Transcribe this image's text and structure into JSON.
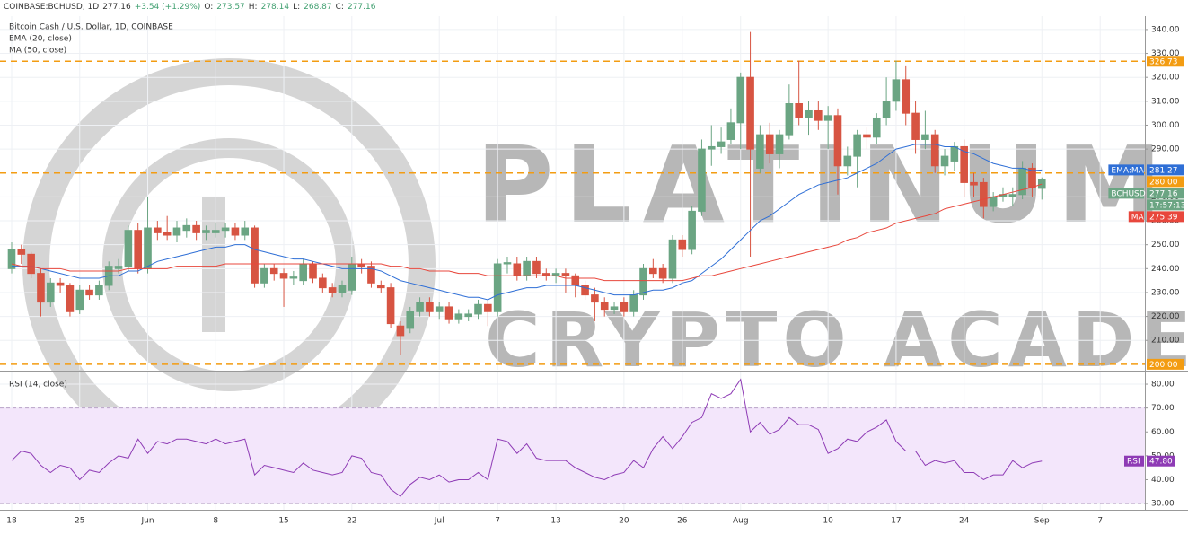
{
  "header": {
    "symbol": "COINBASE:BCHUSD, 1D",
    "last": "277.16",
    "change": "+3.54 (+1.29%)",
    "o_label": "O:",
    "o": "273.57",
    "h_label": "H:",
    "h": "278.14",
    "l_label": "L:",
    "l": "268.87",
    "c_label": "C:",
    "c": "277.16"
  },
  "watermark": {
    "line1": "PLATINUM",
    "line2": "CRYPTO ACADEMY"
  },
  "chart_data": [
    {
      "type": "candlestick",
      "title": "Bitcoin Cash / U.S. Dollar, 1D, COINBASE",
      "up_color": "#6ba583",
      "down_color": "#d75442",
      "ohlc": [
        [
          240,
          251,
          238,
          248
        ],
        [
          248,
          250,
          242,
          246
        ],
        [
          246,
          247,
          236,
          238
        ],
        [
          238,
          240,
          220,
          226
        ],
        [
          226,
          236,
          224,
          234
        ],
        [
          234,
          236,
          230,
          233
        ],
        [
          233,
          234,
          220,
          222
        ],
        [
          223,
          233,
          221,
          231
        ],
        [
          231,
          233,
          227,
          229
        ],
        [
          229,
          235,
          227,
          233
        ],
        [
          233,
          243,
          231,
          241
        ],
        [
          240,
          244,
          238,
          241
        ],
        [
          241,
          258,
          239,
          256
        ],
        [
          256,
          259,
          238,
          240
        ],
        [
          240,
          270,
          238,
          257
        ],
        [
          257,
          260,
          252,
          255
        ],
        [
          255,
          262,
          252,
          254
        ],
        [
          254,
          260,
          251,
          257
        ],
        [
          256,
          261,
          253,
          258
        ],
        [
          258,
          260,
          252,
          255
        ],
        [
          255,
          258,
          252,
          256
        ],
        [
          255,
          259,
          253,
          256
        ],
        [
          256,
          259,
          253,
          257
        ],
        [
          257,
          259,
          252,
          254
        ],
        [
          254,
          260,
          252,
          257
        ],
        [
          257,
          258,
          232,
          234
        ],
        [
          234,
          242,
          232,
          240
        ],
        [
          240,
          242,
          235,
          238
        ],
        [
          238,
          240,
          224,
          236
        ],
        [
          236,
          239,
          233,
          236.5
        ],
        [
          235,
          244,
          233,
          242
        ],
        [
          242,
          243,
          234,
          236
        ],
        [
          236,
          238,
          230,
          232
        ],
        [
          232,
          234,
          228,
          230
        ],
        [
          230,
          235,
          228,
          233
        ],
        [
          231,
          245,
          229,
          242
        ],
        [
          242,
          244,
          238,
          241
        ],
        [
          241,
          243,
          232,
          234
        ],
        [
          233,
          235,
          230,
          232
        ],
        [
          232,
          234,
          215,
          217
        ],
        [
          216,
          218,
          204,
          212
        ],
        [
          215,
          224,
          213,
          222
        ],
        [
          222,
          228,
          220,
          226
        ],
        [
          226,
          228,
          220,
          222
        ],
        [
          222,
          226,
          219,
          224
        ],
        [
          224,
          226,
          217,
          219
        ],
        [
          219,
          223,
          217,
          221
        ],
        [
          220,
          223,
          218,
          221
        ],
        [
          221,
          227,
          219,
          225
        ],
        [
          225,
          227,
          216,
          222
        ],
        [
          222,
          244,
          220,
          242
        ],
        [
          242,
          245,
          238,
          242.5
        ],
        [
          242,
          245,
          235,
          237
        ],
        [
          237,
          245,
          235,
          243
        ],
        [
          243,
          245,
          236,
          238
        ],
        [
          238,
          240,
          235,
          237
        ],
        [
          237,
          240,
          234,
          238
        ],
        [
          238,
          240,
          230,
          237
        ],
        [
          237,
          238,
          228,
          233
        ],
        [
          233,
          235,
          227,
          229
        ],
        [
          229,
          232,
          218,
          226
        ],
        [
          226,
          228,
          220,
          223
        ],
        [
          223,
          226,
          221,
          224
        ],
        [
          226,
          228,
          220,
          222
        ],
        [
          222,
          231,
          220,
          229
        ],
        [
          229,
          242,
          227,
          240
        ],
        [
          240,
          244,
          236,
          238
        ],
        [
          240,
          242,
          234,
          236
        ],
        [
          236,
          254,
          234,
          252
        ],
        [
          252,
          254,
          245,
          248
        ],
        [
          248,
          266,
          246,
          264
        ],
        [
          264,
          294,
          262,
          290
        ],
        [
          290,
          300,
          283,
          291
        ],
        [
          291,
          299,
          288,
          293
        ],
        [
          294,
          307,
          292,
          301
        ],
        [
          301,
          322,
          290,
          320
        ],
        [
          320,
          339,
          245,
          290
        ],
        [
          282,
          300,
          280,
          296
        ],
        [
          296,
          301,
          284,
          288
        ],
        [
          288,
          298,
          282,
          296
        ],
        [
          296,
          317,
          294,
          309
        ],
        [
          309,
          327,
          300,
          303
        ],
        [
          303,
          310,
          296,
          306
        ],
        [
          306,
          310,
          298,
          302
        ],
        [
          302,
          308,
          290,
          304
        ],
        [
          304,
          307,
          271,
          283
        ],
        [
          283,
          291,
          279,
          287
        ],
        [
          287,
          298,
          274,
          296
        ],
        [
          296,
          299,
          290,
          295
        ],
        [
          295,
          305,
          292,
          303
        ],
        [
          303,
          320,
          300,
          310
        ],
        [
          310,
          327,
          306,
          319
        ],
        [
          319,
          325,
          300,
          305
        ],
        [
          305,
          310,
          288,
          294
        ],
        [
          294,
          306,
          290,
          296
        ],
        [
          296,
          298,
          280,
          283
        ],
        [
          283,
          290,
          279,
          287
        ],
        [
          285,
          293,
          281,
          291
        ],
        [
          291,
          294,
          270,
          276
        ],
        [
          276,
          280,
          270,
          275
        ],
        [
          276,
          278,
          261,
          266
        ],
        [
          266,
          272,
          264,
          270
        ],
        [
          270,
          274,
          268,
          271
        ],
        [
          270,
          274,
          266,
          271
        ],
        [
          271,
          285,
          269,
          282
        ],
        [
          282,
          284,
          270,
          274
        ],
        [
          273.57,
          278.14,
          268.87,
          277.16
        ]
      ],
      "series": [
        {
          "name": "EMA (20, close)",
          "color": "#2f6fd6",
          "values": [
            241,
            241,
            241,
            240,
            239,
            238,
            237,
            236,
            236,
            236,
            237,
            237,
            239,
            239,
            241,
            243,
            244,
            245,
            246,
            247,
            248,
            249,
            249,
            250,
            250,
            248,
            247,
            246,
            245,
            244,
            244,
            243,
            242,
            241,
            240,
            240,
            240,
            240,
            239,
            237,
            235,
            234,
            233,
            232,
            231,
            230,
            229,
            228,
            228,
            227,
            229,
            230,
            231,
            232,
            232,
            233,
            233,
            233,
            233,
            232,
            231,
            230,
            229,
            229,
            229,
            230,
            231,
            231,
            232,
            234,
            235,
            238,
            241,
            244,
            248,
            252,
            256,
            260,
            262,
            265,
            268,
            271,
            273,
            275,
            276,
            277,
            278,
            280,
            282,
            284,
            287,
            290,
            291,
            292,
            292,
            292,
            291,
            291,
            289,
            288,
            286,
            284,
            283,
            282,
            282,
            281,
            281.27
          ]
        },
        {
          "name": "MA (50, close)",
          "color": "#e8473c",
          "values": [
            242,
            241,
            241,
            240,
            240,
            240,
            239,
            239,
            239,
            239,
            239,
            239,
            240,
            240,
            240,
            240,
            240,
            241,
            241,
            241,
            241,
            241,
            242,
            242,
            242,
            242,
            242,
            242,
            242,
            242,
            242,
            242,
            242,
            242,
            242,
            242,
            242,
            242,
            242,
            241,
            241,
            240,
            240,
            239,
            239,
            239,
            238,
            238,
            238,
            237,
            237,
            237,
            237,
            237,
            237,
            237,
            237,
            236,
            236,
            236,
            236,
            235,
            235,
            235,
            235,
            235,
            235,
            235,
            235,
            235,
            236,
            237,
            237,
            238,
            239,
            240,
            241,
            242,
            243,
            244,
            245,
            246,
            247,
            248,
            249,
            250,
            252,
            253,
            255,
            256,
            257,
            259,
            260,
            261,
            262,
            263,
            265,
            266,
            267,
            268,
            269,
            270,
            271,
            272,
            273,
            274,
            275.39
          ]
        }
      ],
      "xlim": [
        -1.2,
        116.6
      ],
      "xticks": [
        {
          "value": 0,
          "label": "18"
        },
        {
          "value": 7,
          "label": "25"
        },
        {
          "value": 14,
          "label": "Jun"
        },
        {
          "value": 21,
          "label": "8"
        },
        {
          "value": 28,
          "label": "15"
        },
        {
          "value": 35,
          "label": "22"
        },
        {
          "value": 44,
          "label": "Jul"
        },
        {
          "value": 50,
          "label": "7"
        },
        {
          "value": 56,
          "label": "13"
        },
        {
          "value": 63,
          "label": "20"
        },
        {
          "value": 69,
          "label": "26"
        },
        {
          "value": 75,
          "label": "Aug"
        },
        {
          "value": 84,
          "label": "10"
        },
        {
          "value": 91,
          "label": "17"
        },
        {
          "value": 98,
          "label": "24"
        },
        {
          "value": 106,
          "label": "Sep"
        },
        {
          "value": 112,
          "label": "7"
        }
      ],
      "ylim": [
        197.7,
        345.6
      ],
      "yticks": [
        {
          "value": 340,
          "label": "340.00"
        },
        {
          "value": 330,
          "label": "330.00"
        },
        {
          "value": 320,
          "label": "320.00"
        },
        {
          "value": 310,
          "label": "310.00"
        },
        {
          "value": 300,
          "label": "300.00"
        },
        {
          "value": 290,
          "label": "290.00"
        },
        {
          "value": 270,
          "label": "270.00"
        },
        {
          "value": 260,
          "label": "260.00"
        },
        {
          "value": 250,
          "label": "250.00"
        },
        {
          "value": 240,
          "label": "240.00"
        },
        {
          "value": 230,
          "label": "230.00"
        },
        {
          "value": 220,
          "label": "220.00"
        },
        {
          "value": 210,
          "label": "210.00"
        }
      ],
      "levels": [
        {
          "value": 326.73,
          "label": "326.73"
        },
        {
          "value": 280,
          "label": "280.00"
        },
        {
          "value": 200,
          "label": "200.00"
        }
      ],
      "level_color": "#f39c12",
      "tags": [
        {
          "name": "EMA:MA",
          "value": 281.27,
          "label": "281.27",
          "color": "#2f6fd6"
        },
        {
          "name": "BCHUSD",
          "value": 277.16,
          "label": "277.16",
          "color": "#6ba583"
        },
        {
          "name": "MA",
          "value": 275.39,
          "label": "275.39",
          "color": "#e8473c"
        }
      ],
      "countdown": "17:57:13"
    },
    {
      "type": "line",
      "title": "RSI (14, close)",
      "series": [
        {
          "name": "RSI",
          "color": "#8e3bb5",
          "values": [
            48,
            52,
            51,
            46,
            43,
            46,
            45,
            40,
            44,
            43,
            47,
            50,
            49,
            57,
            51,
            56,
            55,
            57,
            57,
            56,
            55,
            57,
            55,
            56,
            57,
            42,
            46,
            45,
            44,
            43,
            47,
            44,
            43,
            42,
            43,
            50,
            49,
            43,
            42,
            36,
            33,
            38,
            41,
            40,
            42,
            39,
            40,
            40,
            43,
            40,
            57,
            56,
            51,
            55,
            49,
            48,
            48,
            48,
            45,
            43,
            41,
            40,
            42,
            43,
            48,
            45,
            53,
            58,
            53,
            58,
            64,
            66,
            76,
            74,
            76,
            82,
            60,
            64,
            59,
            61,
            66,
            63,
            63,
            61,
            51,
            53,
            57,
            56,
            60,
            62,
            65,
            56,
            52,
            52,
            46,
            48,
            47,
            48,
            43,
            43,
            40,
            42,
            42,
            48,
            45,
            47,
            47.8
          ]
        }
      ],
      "ylim": [
        27.4,
        84.9
      ],
      "yticks": [
        {
          "value": 80,
          "label": "80.00"
        },
        {
          "value": 70,
          "label": "70.00"
        },
        {
          "value": 60,
          "label": "60.00"
        },
        {
          "value": 50,
          "label": "50.00"
        },
        {
          "value": 40,
          "label": "40.00"
        },
        {
          "value": 30,
          "label": "30.00"
        }
      ],
      "band": [
        30,
        70
      ],
      "band_color": "#f3e6fb",
      "tag": {
        "value": 47.8,
        "label": "47.80"
      }
    }
  ]
}
